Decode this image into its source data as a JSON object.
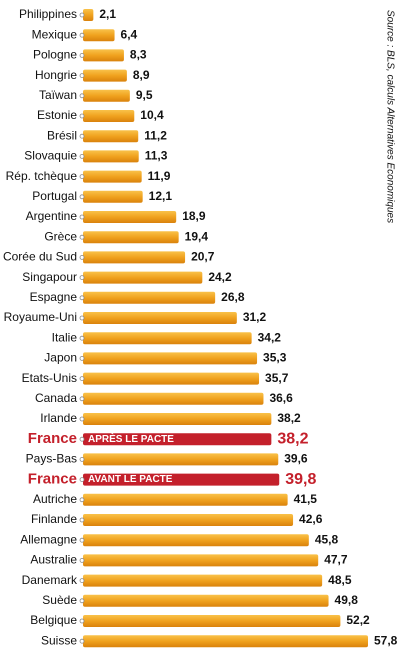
{
  "chart_data": {
    "type": "bar",
    "orientation": "horizontal",
    "categories": [
      "Philippines",
      "Mexique",
      "Pologne",
      "Hongrie",
      "Taïwan",
      "Estonie",
      "Brésil",
      "Slovaquie",
      "Rép. tchèque",
      "Portugal",
      "Argentine",
      "Grèce",
      "Corée du Sud",
      "Singapour",
      "Espagne",
      "Royaume-Uni",
      "Italie",
      "Japon",
      "Etats-Unis",
      "Canada",
      "Irlande",
      "France",
      "Pays-Bas",
      "France",
      "Autriche",
      "Finlande",
      "Allemagne",
      "Australie",
      "Danemark",
      "Suède",
      "Belgique",
      "Suisse"
    ],
    "values": [
      2.1,
      6.4,
      8.3,
      8.9,
      9.5,
      10.4,
      11.2,
      11.3,
      11.9,
      12.1,
      18.9,
      19.4,
      20.7,
      24.2,
      26.8,
      31.2,
      34.2,
      35.3,
      35.7,
      36.6,
      38.2,
      38.2,
      39.6,
      39.8,
      41.5,
      42.6,
      45.8,
      47.7,
      48.5,
      49.8,
      52.2,
      57.8
    ],
    "value_labels": [
      "2,1",
      "6,4",
      "8,3",
      "8,9",
      "9,5",
      "10,4",
      "11,2",
      "11,3",
      "11,9",
      "12,1",
      "18,9",
      "19,4",
      "20,7",
      "24,2",
      "26,8",
      "31,2",
      "34,2",
      "35,3",
      "35,7",
      "36,6",
      "38,2",
      "38,2",
      "39,6",
      "39,8",
      "41,5",
      "42,6",
      "45,8",
      "47,7",
      "48,5",
      "49,8",
      "52,2",
      "57,8"
    ],
    "color": "#f0a21e",
    "highlight_color": "#c4202b",
    "annotations": [
      {
        "index": 21,
        "text": "APRÈS LE PACTE"
      },
      {
        "index": 23,
        "text": "AVANT LE PACTE"
      }
    ],
    "source": "Source : BLS, calculs Alternatives Economiques"
  }
}
